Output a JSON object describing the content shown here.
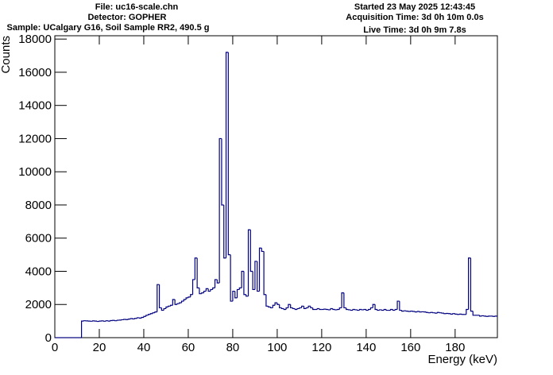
{
  "chart_data": {
    "type": "histogram",
    "header_left": [
      "File: uc16-scale.chn",
      "Detector: GOPHER",
      "Sample: UCalgary G16, Soil Sample RR2, 490.5 g"
    ],
    "header_right": [
      "Started 23 May 2025 12:43:45",
      "Acquisition Time: 3d 0h 10m 0.0s",
      "Live Time: 3d 0h 9m 7.8s"
    ],
    "xlabel": "Energy (keV)",
    "ylabel": "Counts",
    "color": "#000080",
    "xlim": [
      0,
      199
    ],
    "ylim": [
      0,
      18200
    ],
    "xticks": [
      0,
      20,
      40,
      60,
      80,
      100,
      120,
      140,
      160,
      180
    ],
    "yticks": [
      0,
      2000,
      4000,
      6000,
      8000,
      10000,
      12000,
      14000,
      16000,
      18000
    ],
    "bins": [
      0,
      1,
      2,
      3,
      4,
      5,
      6,
      7,
      8,
      9,
      10,
      11,
      12,
      13,
      14,
      15,
      16,
      17,
      18,
      19,
      20,
      21,
      22,
      23,
      24,
      25,
      26,
      27,
      28,
      29,
      30,
      31,
      32,
      33,
      34,
      35,
      36,
      37,
      38,
      39,
      40,
      41,
      42,
      43,
      44,
      45,
      46,
      47,
      48,
      49,
      50,
      51,
      52,
      53,
      54,
      55,
      56,
      57,
      58,
      59,
      60,
      61,
      62,
      63,
      64,
      65,
      66,
      67,
      68,
      69,
      70,
      71,
      72,
      73,
      74,
      75,
      76,
      77,
      78,
      79,
      80,
      81,
      82,
      83,
      84,
      85,
      86,
      87,
      88,
      89,
      90,
      91,
      92,
      93,
      94,
      95,
      96,
      97,
      98,
      99,
      100,
      101,
      102,
      103,
      104,
      105,
      106,
      107,
      108,
      109,
      110,
      111,
      112,
      113,
      114,
      115,
      116,
      117,
      118,
      119,
      120,
      121,
      122,
      123,
      124,
      125,
      126,
      127,
      128,
      129,
      130,
      131,
      132,
      133,
      134,
      135,
      136,
      137,
      138,
      139,
      140,
      141,
      142,
      143,
      144,
      145,
      146,
      147,
      148,
      149,
      150,
      151,
      152,
      153,
      154,
      155,
      156,
      157,
      158,
      159,
      160,
      161,
      162,
      163,
      164,
      165,
      166,
      167,
      168,
      169,
      170,
      171,
      172,
      173,
      174,
      175,
      176,
      177,
      178,
      179,
      180,
      181,
      182,
      183,
      184,
      185,
      186,
      187,
      188,
      189,
      190,
      191,
      192,
      193,
      194,
      195,
      196,
      197,
      198,
      199
    ],
    "values": [
      0,
      0,
      0,
      0,
      0,
      0,
      0,
      0,
      0,
      0,
      0,
      0,
      1000,
      1020,
      1010,
      1000,
      990,
      1010,
      1000,
      980,
      1000,
      1010,
      990,
      1020,
      1000,
      1030,
      1040,
      1020,
      1050,
      1060,
      1080,
      1100,
      1090,
      1120,
      1150,
      1130,
      1160,
      1200,
      1180,
      1220,
      1280,
      1350,
      1400,
      1450,
      1500,
      1550,
      3200,
      1800,
      1650,
      1750,
      1850,
      1900,
      1950,
      2300,
      2000,
      2050,
      2100,
      2200,
      2300,
      2400,
      2450,
      2600,
      3500,
      4800,
      3000,
      2650,
      2700,
      2800,
      2950,
      2800,
      2900,
      3000,
      3500,
      3300,
      12000,
      8000,
      4800,
      17200,
      5000,
      2200,
      2800,
      2400,
      2900,
      3000,
      4000,
      2600,
      2500,
      6500,
      4000,
      2900,
      4600,
      2800,
      5400,
      5200,
      2600,
      1900,
      1850,
      1800,
      1950,
      2100,
      2000,
      1800,
      1750,
      1700,
      1800,
      2000,
      1800,
      1750,
      1700,
      1750,
      1800,
      1900,
      1750,
      1800,
      1900,
      1800,
      1700,
      1700,
      1750,
      1700,
      1700,
      1720,
      1700,
      1680,
      1750,
      1700,
      1680,
      1700,
      1800,
      2700,
      1800,
      1700,
      1680,
      1650,
      1700,
      1680,
      1650,
      1700,
      1680,
      1700,
      1650,
      1700,
      1800,
      2000,
      1700,
      1650,
      1680,
      1650,
      1700,
      1650,
      1650,
      1700,
      1650,
      1700,
      2200,
      1650,
      1600,
      1620,
      1600,
      1580,
      1600,
      1580,
      1550,
      1580,
      1550,
      1560,
      1550,
      1520,
      1500,
      1520,
      1500,
      1480,
      1520,
      1500,
      1480,
      1450,
      1460,
      1450,
      1420,
      1450,
      1420,
      1400,
      1420,
      1400,
      1400,
      1700,
      4800,
      1600,
      1350,
      1350,
      1350,
      1300,
      1320,
      1300,
      1280,
      1300,
      1300,
      1280,
      1300
    ]
  }
}
